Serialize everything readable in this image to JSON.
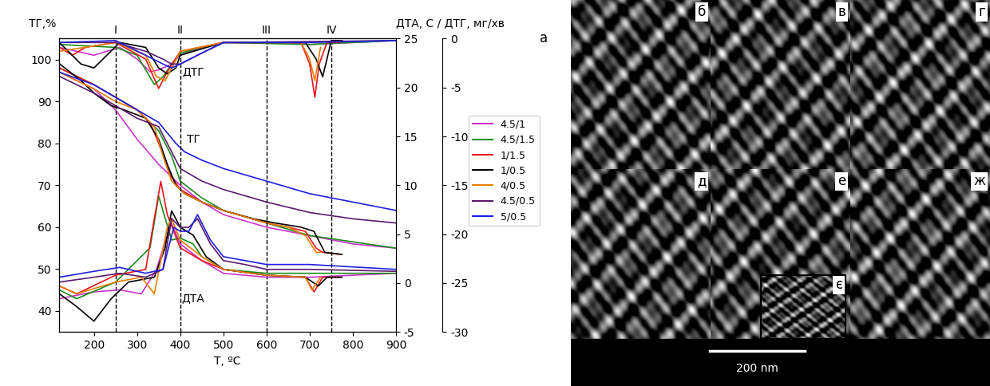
{
  "chart_data": {
    "type": "line",
    "x_label": "T, ºC",
    "y_label": "ТГ,%",
    "y2_label": "ДТА, С / ДТГ, мг/хв",
    "panel_label": "а",
    "xlim": [
      120,
      900
    ],
    "xticks": [
      200,
      300,
      400,
      500,
      600,
      700,
      800,
      900
    ],
    "ylim": [
      35,
      105
    ],
    "yticks": [
      40,
      50,
      60,
      70,
      80,
      90,
      100
    ],
    "y2lim": [
      -5,
      25
    ],
    "y2ticks": [
      -5,
      0,
      5,
      10,
      15,
      20,
      25
    ],
    "y3lim": [
      -30,
      0
    ],
    "y3ticks": [
      -30,
      -25,
      -20,
      -15,
      -10,
      -5,
      0
    ],
    "grid": false,
    "legend": "right",
    "vlines": [
      {
        "x": 250,
        "label": "I"
      },
      {
        "x": 400,
        "label": "II"
      },
      {
        "x": 600,
        "label": "III"
      },
      {
        "x": 750,
        "label": "IV"
      }
    ],
    "annotations": [
      {
        "text": "ДТГ",
        "x": 430,
        "y": 97
      },
      {
        "text": "ТГ",
        "x": 430,
        "y": 81
      },
      {
        "text": "ДТА",
        "x": 430,
        "y": 43
      }
    ],
    "series": [
      {
        "name": "4.5/1",
        "color": "#cc33cc",
        "curves": [
          {
            "axis": "y",
            "x": [
              120,
              200,
              250,
              300,
              350,
              400,
              450,
              500,
              600,
              700,
              800,
              900
            ],
            "values": [
              97,
              93,
              88,
              81,
              75,
              70,
              66,
              63,
              60,
              58,
              56,
              55
            ]
          },
          {
            "axis": "y2",
            "x": [
              120,
              200,
              260,
              310,
              345,
              370,
              380,
              400,
              450,
              500,
              600,
              700,
              900
            ],
            "values": [
              -1.6,
              -0.9,
              -0.7,
              -1.1,
              1.4,
              4.9,
              6.1,
              4,
              2.3,
              1,
              0.6,
              0.6,
              1
            ]
          },
          {
            "axis": "y3",
            "x": [
              120,
              200,
              260,
              300,
              330,
              350,
              380,
              400,
              450,
              500,
              650,
              700,
              900
            ],
            "values": [
              -0.9,
              -1.7,
              -0.9,
              -2.1,
              -3.4,
              -3.2,
              -2.6,
              -1.7,
              -0.9,
              -0.4,
              -0.4,
              -0.6,
              -0.2
            ]
          }
        ]
      },
      {
        "name": "4.5/1.5",
        "color": "#1a8c1a",
        "curves": [
          {
            "axis": "y",
            "x": [
              120,
              200,
              250,
              300,
              350,
              380,
              400,
              450,
              500,
              600,
              700,
              800,
              900
            ],
            "values": [
              98,
              94,
              91,
              88,
              83,
              77,
              71,
              67,
              64,
              61,
              58,
              56.5,
              55
            ]
          },
          {
            "axis": "y2",
            "x": [
              120,
              160,
              250,
              330,
              350,
              360,
              380,
              400,
              430,
              450,
              500,
              600,
              900
            ],
            "values": [
              -0.7,
              -1.6,
              0.1,
              3.6,
              8.9,
              7.4,
              4.4,
              4.6,
              4,
              2.7,
              1.4,
              1,
              1
            ]
          },
          {
            "axis": "y3",
            "x": [
              120,
              250,
              300,
              340,
              360,
              380,
              400,
              450,
              500,
              700,
              900
            ],
            "values": [
              -0.6,
              -0.9,
              -1.7,
              -4.7,
              -3.9,
              -2.6,
              -1.5,
              -0.9,
              -0.4,
              -0.6,
              -0.2
            ]
          }
        ]
      },
      {
        "name": "1/1.5",
        "color": "#e8141c",
        "curves": [
          {
            "axis": "y",
            "x": [
              120,
              200,
              250,
              300,
              330,
              350,
              380,
              400,
              450,
              500,
              600,
              650,
              690,
              715,
              730,
              770
            ],
            "values": [
              98,
              94,
              91,
              88,
              85,
              80,
              72,
              69,
              66,
              64,
              61,
              60,
              59,
              55,
              54,
              53.5
            ]
          },
          {
            "axis": "y2",
            "x": [
              120,
              160,
              250,
              320,
              340,
              355,
              370,
              400,
              450,
              500,
              600,
              690,
              710,
              730,
              770
            ],
            "values": [
              -0.3,
              -1.1,
              0.8,
              1.4,
              6.6,
              10.4,
              7,
              3.6,
              2.3,
              1.4,
              0.8,
              0.6,
              -0.9,
              0.6,
              0.6
            ]
          },
          {
            "axis": "y3",
            "x": [
              120,
              150,
              180,
              250,
              320,
              350,
              370,
              400,
              500,
              680,
              700,
              712,
              722,
              740,
              770
            ],
            "values": [
              -0.9,
              -1.7,
              -0.9,
              -0.4,
              -2.1,
              -5.1,
              -3.4,
              -1.3,
              -0.4,
              -0.4,
              -2.6,
              -6,
              -2.6,
              -0.4,
              -0.4
            ]
          }
        ]
      },
      {
        "name": "1/0.5",
        "color": "#000000",
        "curves": [
          {
            "axis": "y",
            "x": [
              120,
              170,
              200,
              240,
              270,
              320,
              350,
              370,
              390,
              410,
              450,
              500,
              570,
              620,
              680,
              710,
              735,
              775
            ],
            "values": [
              99,
              95,
              92,
              89,
              88,
              86,
              81,
              75,
              70,
              68,
              66,
              64,
              62,
              61,
              60,
              59,
              54,
              53.5
            ]
          },
          {
            "axis": "y2",
            "x": [
              120,
              160,
              200,
              240,
              280,
              340,
              365,
              380,
              400,
              430,
              460,
              500,
              600,
              690,
              720,
              740,
              775
            ],
            "values": [
              -1.1,
              -2.4,
              -3.9,
              -1.6,
              0.1,
              0.6,
              3.6,
              7.4,
              5.7,
              4.9,
              2.7,
              1.4,
              0.8,
              0.6,
              -0.3,
              0.6,
              0.6
            ]
          },
          {
            "axis": "y3",
            "x": [
              120,
              170,
              200,
              230,
              260,
              320,
              350,
              370,
              390,
              400,
              500,
              690,
              715,
              730,
              740,
              750,
              775
            ],
            "values": [
              -0.4,
              -2.6,
              -3,
              -1.7,
              -0.4,
              -0.9,
              -3,
              -3.6,
              -3,
              -1.7,
              -0.4,
              -0.4,
              -2.1,
              -3.9,
              -2.1,
              -0.2,
              -0.2
            ]
          }
        ]
      },
      {
        "name": "4/0.5",
        "color": "#e67e00",
        "curves": [
          {
            "axis": "y",
            "x": [
              120,
              200,
              250,
              300,
              340,
              360,
              380,
              410,
              450,
              500,
              600,
              650,
              690,
              715,
              725
            ],
            "values": [
              97,
              93,
              90,
              88,
              84,
              77,
              71,
              68,
              66,
              64,
              61,
              60,
              58,
              54,
              54
            ]
          },
          {
            "axis": "y2",
            "x": [
              120,
              160,
              250,
              310,
              340,
              355,
              370,
              380,
              400,
              450,
              500,
              600,
              690,
              705,
              725
            ],
            "values": [
              -0.3,
              -1.1,
              0.1,
              0.6,
              -1.1,
              2.3,
              5.7,
              6.6,
              4.4,
              2.7,
              1.4,
              0.8,
              0.6,
              -0.7,
              0.6
            ]
          },
          {
            "axis": "y3",
            "x": [
              120,
              250,
              320,
              345,
              365,
              385,
              400,
              500,
              680,
              700,
              712,
              725
            ],
            "values": [
              -1.3,
              -0.4,
              -1.7,
              -3.9,
              -4.3,
              -2.6,
              -1.3,
              -0.4,
              -0.4,
              -2.1,
              -4.3,
              -0.9
            ]
          }
        ]
      },
      {
        "name": "4.5/0.5",
        "color": "#5a1a6e",
        "curves": [
          {
            "axis": "y",
            "x": [
              120,
              200,
              250,
              300,
              350,
              380,
              400,
              450,
              500,
              600,
              700,
              800,
              900
            ],
            "values": [
              96,
              92,
              89,
              86,
              84,
              78,
              74,
              71,
              69,
              66,
              63.5,
              62,
              61
            ]
          },
          {
            "axis": "y2",
            "x": [
              120,
              200,
              260,
              320,
              360,
              380,
              400,
              420,
              440,
              470,
              500,
              550,
              600,
              700,
              900
            ],
            "values": [
              0.1,
              0.6,
              1,
              0.6,
              1.4,
              6.6,
              5.7,
              5.7,
              6.6,
              4,
              2.3,
              1.9,
              1.4,
              1.4,
              1.2
            ]
          },
          {
            "axis": "y3",
            "x": [
              120,
              250,
              320,
              360,
              380,
              400,
              440,
              500,
              900
            ],
            "values": [
              -0.4,
              -0.4,
              -1.3,
              -2.1,
              -2.6,
              -2.6,
              -1.7,
              -0.4,
              -0.2
            ]
          }
        ]
      },
      {
        "name": "5/0.5",
        "color": "#1f1fe0",
        "curves": [
          {
            "axis": "y",
            "x": [
              120,
              200,
              250,
              300,
              350,
              390,
              410,
              450,
              500,
              600,
              700,
              800,
              900
            ],
            "values": [
              97,
              94,
              91,
              88,
              85,
              80,
              78,
              76,
              74,
              71,
              68,
              66,
              64
            ]
          },
          {
            "axis": "y2",
            "x": [
              120,
              200,
              260,
              320,
              360,
              385,
              400,
              420,
              440,
              470,
              500,
              550,
              600,
              700,
              900
            ],
            "values": [
              0.6,
              1.2,
              1.6,
              1,
              1.4,
              5.7,
              5.3,
              5.3,
              7,
              4.4,
              2.7,
              2.3,
              1.9,
              1.9,
              1.4
            ]
          },
          {
            "axis": "y3",
            "x": [
              120,
              250,
              320,
              360,
              380,
              400,
              440,
              500,
              700,
              900
            ],
            "values": [
              -0.4,
              -0.2,
              -1.7,
              -2.6,
              -3,
              -2.6,
              -1.7,
              -0.4,
              -0.4,
              -0.2
            ]
          }
        ]
      }
    ]
  },
  "micrographs": {
    "panels": [
      "б",
      "в",
      "г",
      "д",
      "е",
      "ж"
    ],
    "inset": "є",
    "scale_bar": "200 nm"
  }
}
